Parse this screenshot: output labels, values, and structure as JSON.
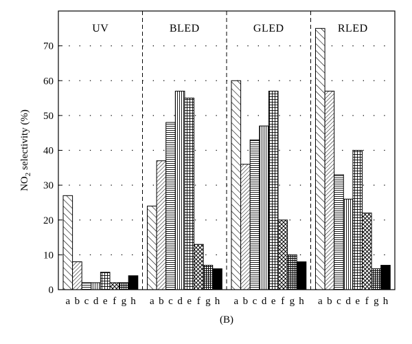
{
  "chart_data": {
    "type": "bar",
    "ylabel": {
      "main": "NO",
      "subscript": "2",
      "rest": " selectivity (%)"
    },
    "ylim": [
      0,
      80
    ],
    "yticks": [
      0,
      10,
      20,
      30,
      40,
      50,
      60,
      70
    ],
    "grid": "dotted horizontal",
    "caption": "(B)",
    "bar_labels": [
      "a",
      "b",
      "c",
      "d",
      "e",
      "f",
      "g",
      "h"
    ],
    "patterns": [
      "diag-wide",
      "diag-dense",
      "horizontal",
      "vertical",
      "grid",
      "crosshatch",
      "dense-grid",
      "solid"
    ],
    "groups": [
      {
        "name": "UV",
        "values": [
          27,
          8,
          2,
          2,
          5,
          2,
          2,
          4
        ]
      },
      {
        "name": "BLED",
        "values": [
          24,
          37,
          48,
          57,
          55,
          13,
          7,
          6
        ]
      },
      {
        "name": "GLED",
        "values": [
          60,
          36,
          43,
          47,
          57,
          20,
          10,
          8
        ]
      },
      {
        "name": "RLED",
        "values": [
          75,
          57,
          33,
          26,
          40,
          22,
          6,
          7
        ]
      }
    ]
  }
}
